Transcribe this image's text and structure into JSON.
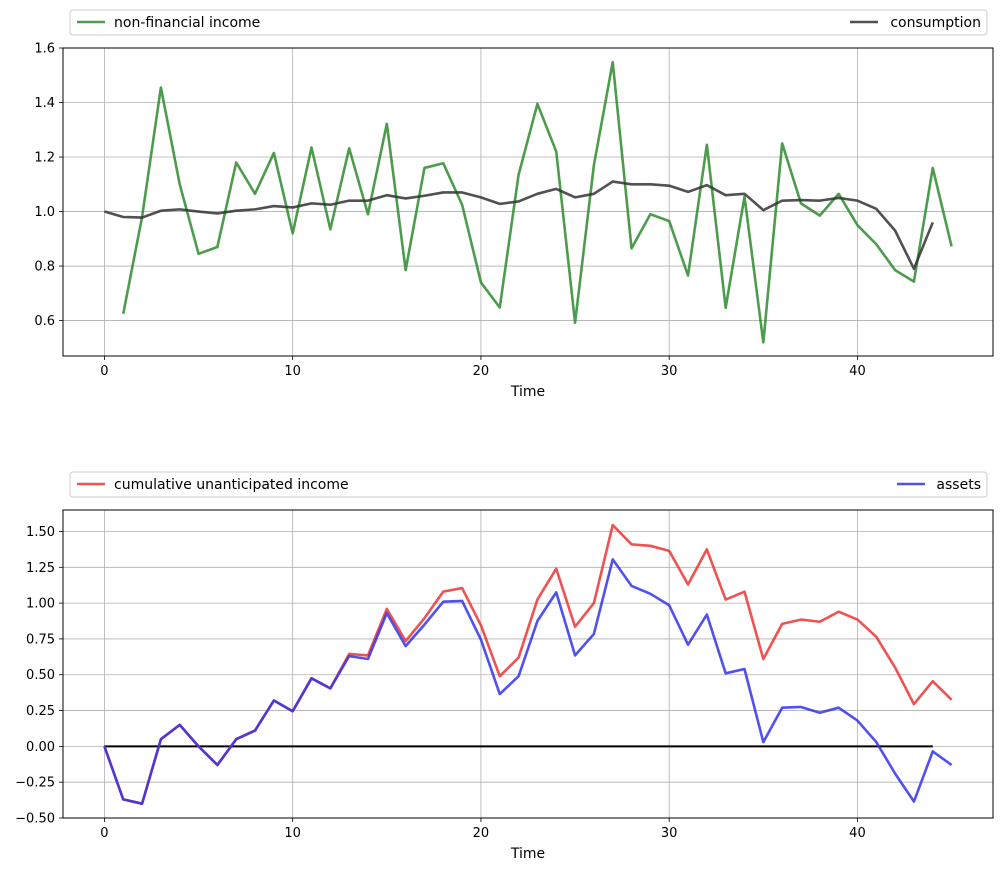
{
  "chart_data": [
    {
      "type": "line",
      "xlabel": "Time",
      "ylabel": "",
      "xlim": [
        -2.2,
        47.2
      ],
      "ylim": [
        0.47,
        1.6
      ],
      "xticks": [
        0,
        10,
        20,
        30,
        40
      ],
      "yticks": [
        0.6,
        0.8,
        1.0,
        1.2,
        1.4,
        1.6
      ],
      "ytick_labels": [
        "0.6",
        "0.8",
        "1.0",
        "1.2",
        "1.4",
        "1.6"
      ],
      "grid": true,
      "legend_placement": "top-above",
      "series": [
        {
          "name": "non-financial income",
          "color": "#2e8b2e",
          "x": [
            1,
            2,
            3,
            4,
            5,
            6,
            7,
            8,
            9,
            10,
            11,
            12,
            13,
            14,
            15,
            16,
            17,
            18,
            19,
            20,
            21,
            22,
            23,
            24,
            25,
            26,
            27,
            28,
            29,
            30,
            31,
            32,
            33,
            34,
            35,
            36,
            37,
            38,
            39,
            40,
            41,
            42,
            43,
            44,
            45
          ],
          "values": [
            0.625,
            0.98,
            1.455,
            1.1,
            0.845,
            0.87,
            1.18,
            1.065,
            1.215,
            0.92,
            1.235,
            0.935,
            1.232,
            0.99,
            1.322,
            0.785,
            1.16,
            1.177,
            1.025,
            0.74,
            0.648,
            1.135,
            1.395,
            1.22,
            0.592,
            1.17,
            1.548,
            0.865,
            0.99,
            0.965,
            0.765,
            1.245,
            0.647,
            1.055,
            0.52,
            1.25,
            1.03,
            0.985,
            1.065,
            0.95,
            0.88,
            0.785,
            0.743,
            1.16,
            0.872
          ]
        },
        {
          "name": "consumption",
          "color": "#333333",
          "x": [
            0,
            1,
            2,
            3,
            4,
            5,
            6,
            7,
            8,
            9,
            10,
            11,
            12,
            13,
            14,
            15,
            16,
            17,
            18,
            19,
            20,
            21,
            22,
            23,
            24,
            25,
            26,
            27,
            28,
            29,
            30,
            31,
            32,
            33,
            34,
            35,
            36,
            37,
            38,
            39,
            40,
            41,
            42,
            43,
            44
          ],
          "values": [
            1.0,
            0.98,
            0.978,
            1.003,
            1.008,
            1.0,
            0.993,
            1.003,
            1.008,
            1.02,
            1.015,
            1.03,
            1.025,
            1.04,
            1.04,
            1.06,
            1.048,
            1.058,
            1.07,
            1.07,
            1.052,
            1.028,
            1.037,
            1.065,
            1.083,
            1.052,
            1.065,
            1.11,
            1.1,
            1.1,
            1.095,
            1.072,
            1.097,
            1.06,
            1.065,
            1.005,
            1.04,
            1.042,
            1.04,
            1.05,
            1.04,
            1.01,
            0.93,
            0.79,
            0.96
          ]
        }
      ]
    },
    {
      "type": "line",
      "xlabel": "Time",
      "ylabel": "",
      "xlim": [
        -2.2,
        47.2
      ],
      "ylim": [
        -0.5,
        1.65
      ],
      "xticks": [
        0,
        10,
        20,
        30,
        40
      ],
      "yticks": [
        -0.5,
        -0.25,
        0.0,
        0.25,
        0.5,
        0.75,
        1.0,
        1.25,
        1.5
      ],
      "ytick_labels": [
        "−0.50",
        "−0.25",
        "0.00",
        "0.25",
        "0.50",
        "0.75",
        "1.00",
        "1.25",
        "1.50"
      ],
      "grid": true,
      "legend_placement": "top-above",
      "zero_line": {
        "x": [
          0,
          44
        ],
        "y": 0.0,
        "color": "#000000"
      },
      "series": [
        {
          "name": "cumulative unanticipated income",
          "color": "#ee3333",
          "x": [
            0,
            1,
            2,
            3,
            4,
            5,
            6,
            7,
            8,
            9,
            10,
            11,
            12,
            13,
            14,
            15,
            16,
            17,
            18,
            19,
            20,
            21,
            22,
            23,
            24,
            25,
            26,
            27,
            28,
            29,
            30,
            31,
            32,
            33,
            34,
            35,
            36,
            37,
            38,
            39,
            40,
            41,
            42,
            43,
            44,
            45
          ],
          "values": [
            0.0,
            -0.37,
            -0.4,
            0.05,
            0.15,
            0.0,
            -0.13,
            0.05,
            0.11,
            0.32,
            0.245,
            0.475,
            0.405,
            0.645,
            0.635,
            0.96,
            0.735,
            0.895,
            1.08,
            1.105,
            0.845,
            0.49,
            0.62,
            1.025,
            1.24,
            0.835,
            1.0,
            1.545,
            1.41,
            1.4,
            1.365,
            1.13,
            1.375,
            1.025,
            1.08,
            0.61,
            0.855,
            0.885,
            0.87,
            0.94,
            0.885,
            0.765,
            0.55,
            0.295,
            0.455,
            0.325
          ]
        },
        {
          "name": "assets",
          "color": "#3333ee",
          "x": [
            0,
            1,
            2,
            3,
            4,
            5,
            6,
            7,
            8,
            9,
            10,
            11,
            12,
            13,
            14,
            15,
            16,
            17,
            18,
            19,
            20,
            21,
            22,
            23,
            24,
            25,
            26,
            27,
            28,
            29,
            30,
            31,
            32,
            33,
            34,
            35,
            36,
            37,
            38,
            39,
            40,
            41,
            42,
            43,
            44,
            45
          ],
          "values": [
            0.0,
            -0.37,
            -0.4,
            0.05,
            0.15,
            0.0,
            -0.13,
            0.05,
            0.11,
            0.32,
            0.245,
            0.475,
            0.405,
            0.63,
            0.61,
            0.93,
            0.7,
            0.85,
            1.01,
            1.015,
            0.745,
            0.365,
            0.49,
            0.875,
            1.075,
            0.635,
            0.785,
            1.305,
            1.12,
            1.065,
            0.985,
            0.71,
            0.92,
            0.51,
            0.54,
            0.03,
            0.27,
            0.275,
            0.235,
            0.27,
            0.18,
            0.03,
            -0.19,
            -0.385,
            -0.035,
            -0.13
          ]
        }
      ]
    }
  ]
}
